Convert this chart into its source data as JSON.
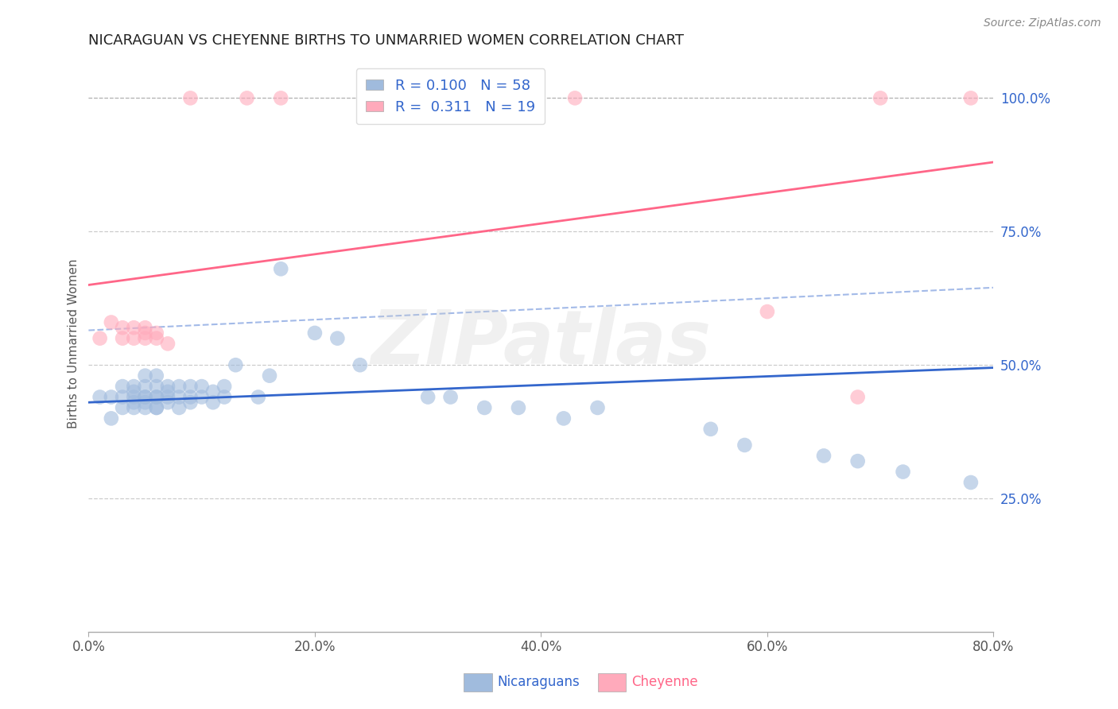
{
  "title": "NICARAGUAN VS CHEYENNE BIRTHS TO UNMARRIED WOMEN CORRELATION CHART",
  "source_text": "Source: ZipAtlas.com",
  "ylabel": "Births to Unmarried Women",
  "watermark": "ZIPatlas",
  "xlim": [
    0.0,
    0.8
  ],
  "ylim": [
    0.0,
    1.08
  ],
  "yticks": [
    0.25,
    0.5,
    0.75,
    1.0
  ],
  "ytick_labels": [
    "25.0%",
    "50.0%",
    "75.0%",
    "100.0%"
  ],
  "xticks": [
    0.0,
    0.2,
    0.4,
    0.6,
    0.8
  ],
  "xtick_labels": [
    "0.0%",
    "20.0%",
    "40.0%",
    "60.0%",
    "80.0%"
  ],
  "blue_fill": "#A0BBDD",
  "pink_fill": "#FFAABB",
  "blue_line_color": "#3366CC",
  "pink_line_color": "#FF6688",
  "legend_label_blue": "R = 0.100   N = 58",
  "legend_label_pink": "R =  0.311   N = 19",
  "blue_scatter_x": [
    0.01,
    0.02,
    0.02,
    0.03,
    0.03,
    0.03,
    0.04,
    0.04,
    0.04,
    0.04,
    0.04,
    0.05,
    0.05,
    0.05,
    0.05,
    0.05,
    0.05,
    0.06,
    0.06,
    0.06,
    0.06,
    0.06,
    0.06,
    0.07,
    0.07,
    0.07,
    0.07,
    0.08,
    0.08,
    0.08,
    0.09,
    0.09,
    0.09,
    0.1,
    0.1,
    0.11,
    0.11,
    0.12,
    0.12,
    0.13,
    0.15,
    0.16,
    0.17,
    0.2,
    0.22,
    0.24,
    0.3,
    0.32,
    0.35,
    0.38,
    0.42,
    0.45,
    0.55,
    0.58,
    0.65,
    0.68,
    0.72,
    0.78
  ],
  "blue_scatter_y": [
    0.44,
    0.4,
    0.44,
    0.44,
    0.42,
    0.46,
    0.43,
    0.44,
    0.46,
    0.42,
    0.45,
    0.43,
    0.44,
    0.46,
    0.48,
    0.44,
    0.42,
    0.42,
    0.44,
    0.46,
    0.48,
    0.42,
    0.44,
    0.44,
    0.46,
    0.45,
    0.43,
    0.42,
    0.44,
    0.46,
    0.46,
    0.44,
    0.43,
    0.44,
    0.46,
    0.45,
    0.43,
    0.44,
    0.46,
    0.5,
    0.44,
    0.48,
    0.68,
    0.56,
    0.55,
    0.5,
    0.44,
    0.44,
    0.42,
    0.42,
    0.4,
    0.42,
    0.38,
    0.35,
    0.33,
    0.32,
    0.3,
    0.28
  ],
  "pink_scatter_x": [
    0.01,
    0.02,
    0.03,
    0.03,
    0.04,
    0.04,
    0.05,
    0.05,
    0.05,
    0.06,
    0.06,
    0.07,
    0.6,
    0.68
  ],
  "pink_scatter_y": [
    0.55,
    0.58,
    0.55,
    0.57,
    0.55,
    0.57,
    0.55,
    0.57,
    0.56,
    0.55,
    0.56,
    0.54,
    0.6,
    0.44
  ],
  "pink_top_x": [
    0.09,
    0.14,
    0.17,
    0.43,
    0.7,
    0.78
  ],
  "pink_top_y": [
    1.0,
    1.0,
    1.0,
    1.0,
    1.0,
    1.0
  ],
  "blue_line": [
    0.0,
    0.8,
    0.43,
    0.495
  ],
  "pink_line": [
    0.0,
    0.8,
    0.65,
    0.88
  ],
  "dashed_line": [
    0.0,
    0.8,
    0.565,
    0.645
  ]
}
